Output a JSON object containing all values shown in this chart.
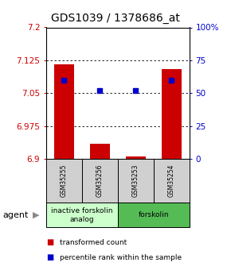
{
  "title": "GDS1039 / 1378686_at",
  "samples": [
    "GSM35255",
    "GSM35256",
    "GSM35253",
    "GSM35254"
  ],
  "red_values": [
    7.115,
    6.935,
    6.905,
    7.105
  ],
  "blue_values_pct": [
    60,
    52,
    52,
    60
  ],
  "ymin": 6.9,
  "ymax": 7.2,
  "yticks_left": [
    6.9,
    6.975,
    7.05,
    7.125,
    7.2
  ],
  "yticks_right": [
    0,
    25,
    50,
    75,
    100
  ],
  "groups": [
    {
      "label": "inactive forskolin\nanalog",
      "samples": [
        0,
        1
      ],
      "color": "#ccffcc"
    },
    {
      "label": "forskolin",
      "samples": [
        2,
        3
      ],
      "color": "#55bb55"
    }
  ],
  "left_color": "#cc0000",
  "right_color": "#0000cc",
  "title_fontsize": 10,
  "tick_fontsize": 7.5,
  "sample_fontsize": 5.5,
  "group_fontsize": 6.5,
  "legend_fontsize": 6.5,
  "agent_label": "agent",
  "legend_red": "transformed count",
  "legend_blue": "percentile rank within the sample",
  "sample_bg_color": "#d0d0d0",
  "bar_width": 0.55
}
